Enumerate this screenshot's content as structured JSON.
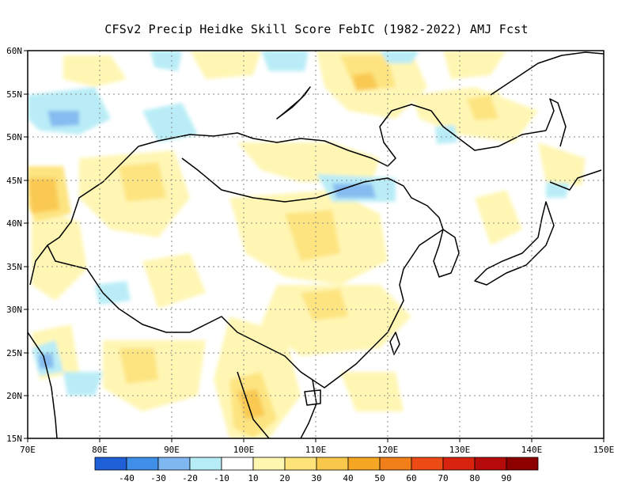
{
  "title": "CFSv2 Precip Heidke Skill Score FebIC (1982-2022) AMJ Fcst",
  "map": {
    "lon_range": [
      70,
      150
    ],
    "lat_range": [
      15,
      60
    ],
    "lon_ticks": [
      "70E",
      "80E",
      "90E",
      "100E",
      "110E",
      "120E",
      "130E",
      "140E",
      "150E"
    ],
    "lat_ticks": [
      "15N",
      "20N",
      "25N",
      "30N",
      "35N",
      "40N",
      "45N",
      "50N",
      "55N",
      "60N"
    ]
  },
  "legend": {
    "colors": [
      "#1f5fd8",
      "#3f8ee8",
      "#7fb8f0",
      "#b6ecf6",
      "#ffffff",
      "#fff6b0",
      "#fde37a",
      "#f9c74a",
      "#f5a623",
      "#f17f1a",
      "#ec4b16",
      "#d8230f",
      "#b50b0b",
      "#8c0000"
    ],
    "labels": [
      "-40",
      "-30",
      "-20",
      "-10",
      "10",
      "20",
      "30",
      "40",
      "50",
      "60",
      "70",
      "80",
      "90"
    ]
  }
}
